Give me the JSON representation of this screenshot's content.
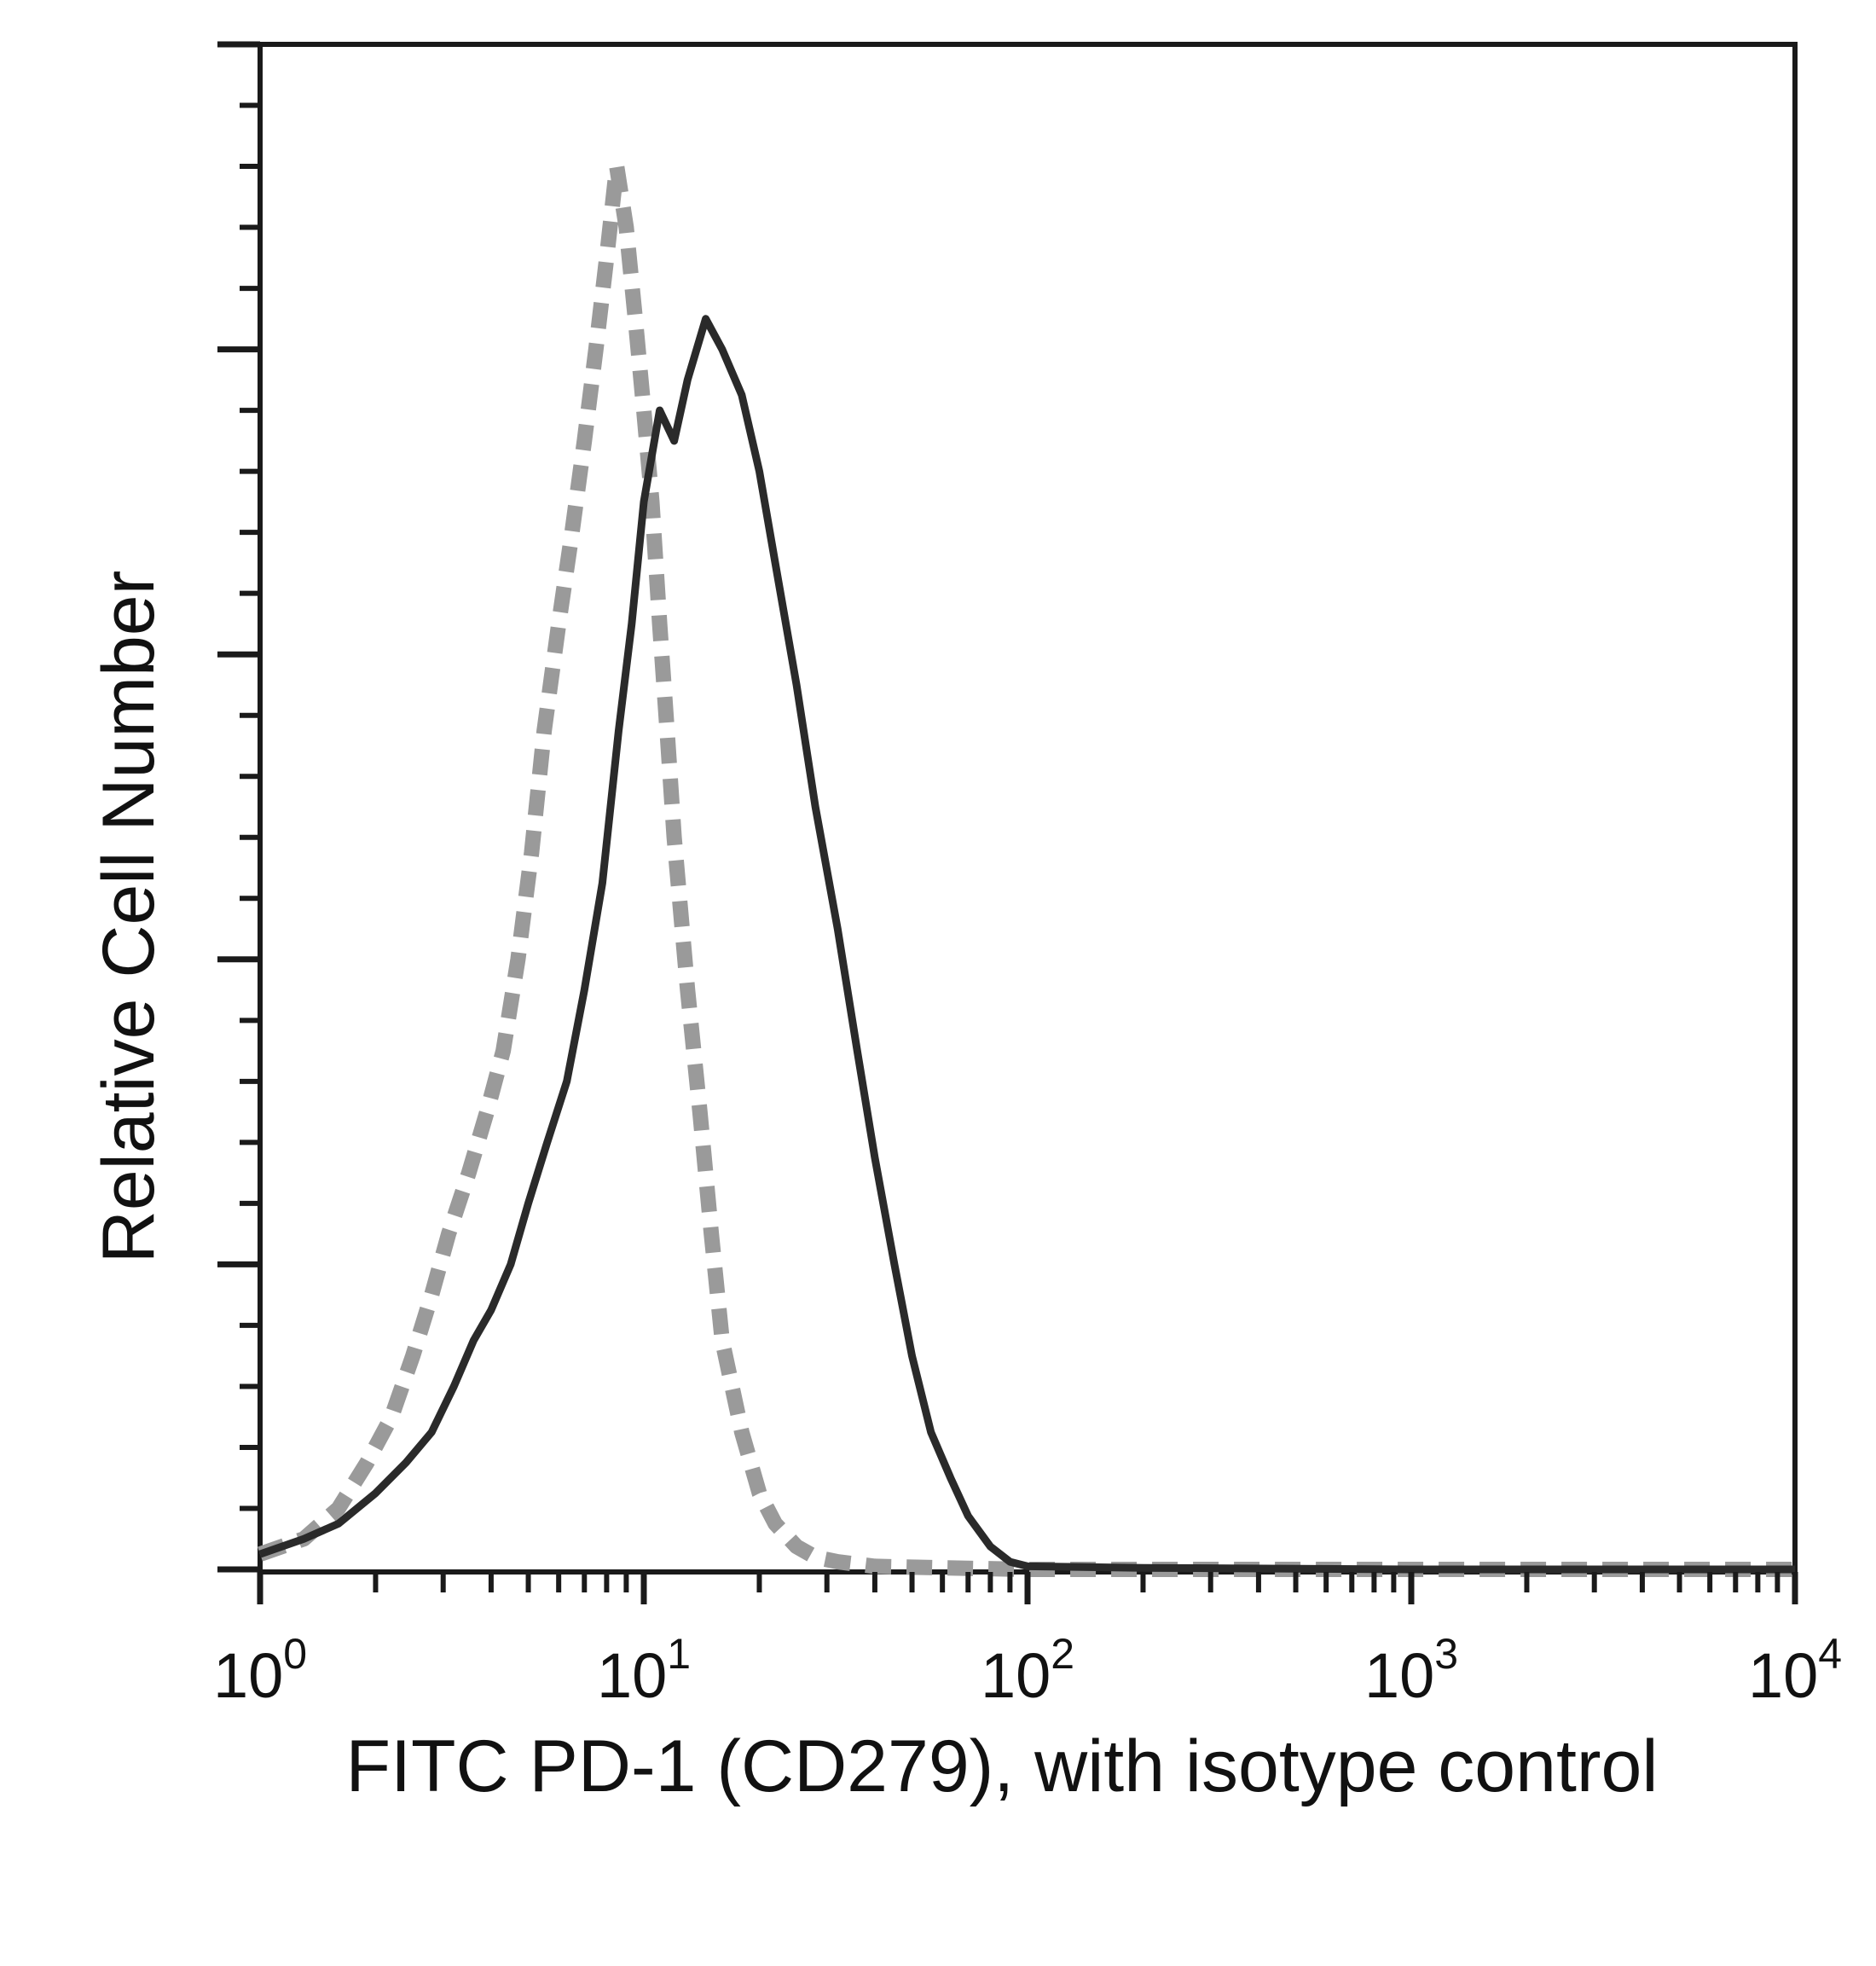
{
  "chart_data": {
    "type": "line",
    "title": "",
    "xlabel": "FITC PD-1 (CD279), with isotype control",
    "ylabel": "Relative Cell Number",
    "x_scale": "log10",
    "xlim": [
      1,
      10000
    ],
    "ylim": [
      0,
      1
    ],
    "x_ticks": [
      {
        "value": 1,
        "base": "10",
        "exp": "0"
      },
      {
        "value": 10,
        "base": "10",
        "exp": "1"
      },
      {
        "value": 100,
        "base": "10",
        "exp": "2"
      },
      {
        "value": 1000,
        "base": "10",
        "exp": "3"
      },
      {
        "value": 10000,
        "base": "10",
        "exp": "4"
      }
    ],
    "y_tick_labels": "none",
    "grid": false,
    "legend": "none",
    "series": [
      {
        "style": "dashed",
        "color": "#9a9a9a",
        "x": [
          1.0,
          1.3,
          1.6,
          1.9,
          2.2,
          2.5,
          2.8,
          3.1,
          3.5,
          3.9,
          4.3,
          4.7,
          5.1,
          5.5,
          6.0,
          6.5,
          7.0,
          7.5,
          8.0,
          8.5,
          9.0,
          9.5,
          10.0,
          10.5,
          11.0,
          11.5,
          12.0,
          13.0,
          14.0,
          15.0,
          16.0,
          18.0,
          20.0,
          22.0,
          25.0,
          28.0,
          32.0,
          40.0,
          60.0,
          100.0,
          200.0,
          1000.0,
          10000.0
        ],
        "y": [
          0.01,
          0.02,
          0.04,
          0.07,
          0.1,
          0.14,
          0.18,
          0.22,
          0.26,
          0.3,
          0.34,
          0.4,
          0.47,
          0.55,
          0.62,
          0.68,
          0.74,
          0.8,
          0.86,
          0.92,
          0.88,
          0.82,
          0.76,
          0.7,
          0.62,
          0.55,
          0.48,
          0.38,
          0.3,
          0.22,
          0.15,
          0.09,
          0.05,
          0.03,
          0.015,
          0.008,
          0.005,
          0.002,
          0.001,
          0.0,
          0.0,
          0.0,
          0.0
        ]
      },
      {
        "style": "solid",
        "color": "#2a2a2a",
        "x": [
          1.0,
          1.3,
          1.6,
          2.0,
          2.4,
          2.8,
          3.2,
          3.6,
          4.0,
          4.5,
          5.0,
          5.6,
          6.3,
          7.0,
          7.8,
          8.6,
          9.3,
          10.0,
          11.0,
          12.0,
          13.0,
          14.5,
          16.0,
          18.0,
          20.0,
          22.0,
          25.0,
          28.0,
          32.0,
          36.0,
          40.0,
          45.0,
          50.0,
          56.0,
          63.0,
          70.0,
          80.0,
          90.0,
          100.0,
          200.0,
          1000.0,
          10000.0
        ],
        "y": [
          0.01,
          0.02,
          0.03,
          0.05,
          0.07,
          0.09,
          0.12,
          0.15,
          0.17,
          0.2,
          0.24,
          0.28,
          0.32,
          0.38,
          0.45,
          0.55,
          0.62,
          0.7,
          0.76,
          0.74,
          0.78,
          0.82,
          0.8,
          0.77,
          0.72,
          0.66,
          0.58,
          0.5,
          0.42,
          0.34,
          0.27,
          0.2,
          0.14,
          0.09,
          0.06,
          0.035,
          0.015,
          0.005,
          0.002,
          0.001,
          0.0,
          0.0
        ]
      }
    ]
  }
}
